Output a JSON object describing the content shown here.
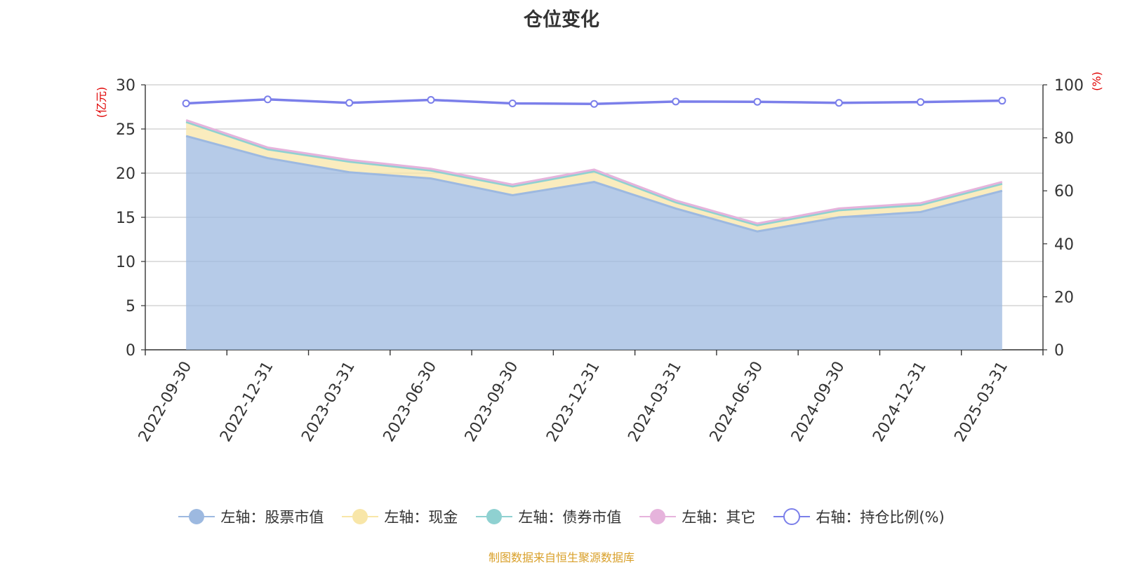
{
  "chart_data": {
    "type": "area",
    "title": "仓位变化",
    "categories": [
      "2022-09-30",
      "2022-12-31",
      "2023-03-31",
      "2023-06-30",
      "2023-09-30",
      "2023-12-31",
      "2024-03-31",
      "2024-06-30",
      "2024-09-30",
      "2024-12-31",
      "2025-03-31"
    ],
    "left_axis": {
      "unit_label": "(亿元)",
      "ylim": [
        0,
        30
      ],
      "ticks": [
        0,
        5,
        10,
        15,
        20,
        25,
        30
      ]
    },
    "right_axis": {
      "unit_label": "(%)",
      "ylim": [
        0,
        100
      ],
      "ticks": [
        0,
        20,
        40,
        60,
        80,
        100
      ]
    },
    "series": [
      {
        "name": "左轴：股票市值",
        "axis": "left",
        "stacked": true,
        "color": "#9db9e0",
        "values": [
          24.2,
          21.7,
          20.1,
          19.4,
          17.5,
          19.0,
          16.0,
          13.4,
          15.0,
          15.6,
          18.0
        ]
      },
      {
        "name": "左轴：现金",
        "axis": "left",
        "stacked": true,
        "color": "#f8e6a8",
        "values": [
          1.6,
          1.0,
          1.2,
          0.9,
          1.0,
          1.2,
          0.7,
          0.7,
          0.8,
          0.8,
          0.8
        ]
      },
      {
        "name": "左轴：债券市值",
        "axis": "left",
        "stacked": true,
        "color": "#8fd1d1",
        "values": [
          0,
          0,
          0,
          0,
          0,
          0,
          0,
          0,
          0,
          0,
          0
        ]
      },
      {
        "name": "左轴：其它",
        "axis": "left",
        "stacked": true,
        "color": "#e6b3dc",
        "values": [
          0.2,
          0.2,
          0.2,
          0.2,
          0.2,
          0.2,
          0.2,
          0.2,
          0.2,
          0.2,
          0.2
        ]
      },
      {
        "name": "右轴：持仓比例(%)",
        "axis": "right",
        "type": "line",
        "color": "#7b7fea",
        "values": [
          93.0,
          94.5,
          93.2,
          94.3,
          93.0,
          92.8,
          93.7,
          93.6,
          93.2,
          93.5,
          94.0
        ]
      }
    ]
  },
  "footer": "制图数据来自恒生聚源数据库"
}
